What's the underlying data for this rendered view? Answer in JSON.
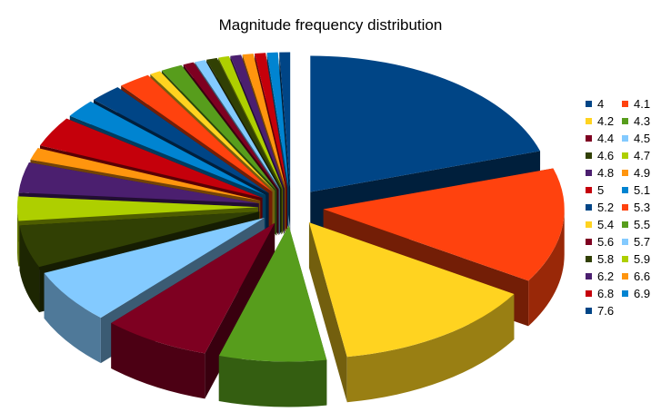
{
  "chart_data": {
    "type": "pie",
    "title": "Magnitude frequency distribution",
    "legend_position": "right",
    "categories": [
      "4",
      "4.1",
      "4.2",
      "4.3",
      "4.4",
      "4.5",
      "4.6",
      "4.7",
      "4.8",
      "4.9",
      "5",
      "5.1",
      "5.2",
      "5.3",
      "5.4",
      "5.5",
      "5.6",
      "5.7",
      "5.8",
      "5.9",
      "6.2",
      "6.6",
      "6.8",
      "6.9",
      "7.6"
    ],
    "values": [
      28,
      19,
      19,
      10,
      10,
      9,
      7,
      4,
      5,
      2,
      5,
      3,
      3,
      3,
      1,
      2,
      1,
      1,
      1,
      1,
      1,
      1,
      1,
      1,
      1
    ],
    "colors": [
      "#004586",
      "#ff420e",
      "#ffd320",
      "#579d1c",
      "#7e0021",
      "#83caff",
      "#314004",
      "#aecf00",
      "#4b1f6f",
      "#ff950e",
      "#c5000b",
      "#0084d1",
      "#004586",
      "#ff420e",
      "#ffd320",
      "#579d1c",
      "#7e0021",
      "#83caff",
      "#314004",
      "#aecf00",
      "#4b1f6f",
      "#ff950e",
      "#c5000b",
      "#0084d1",
      "#004586"
    ]
  }
}
